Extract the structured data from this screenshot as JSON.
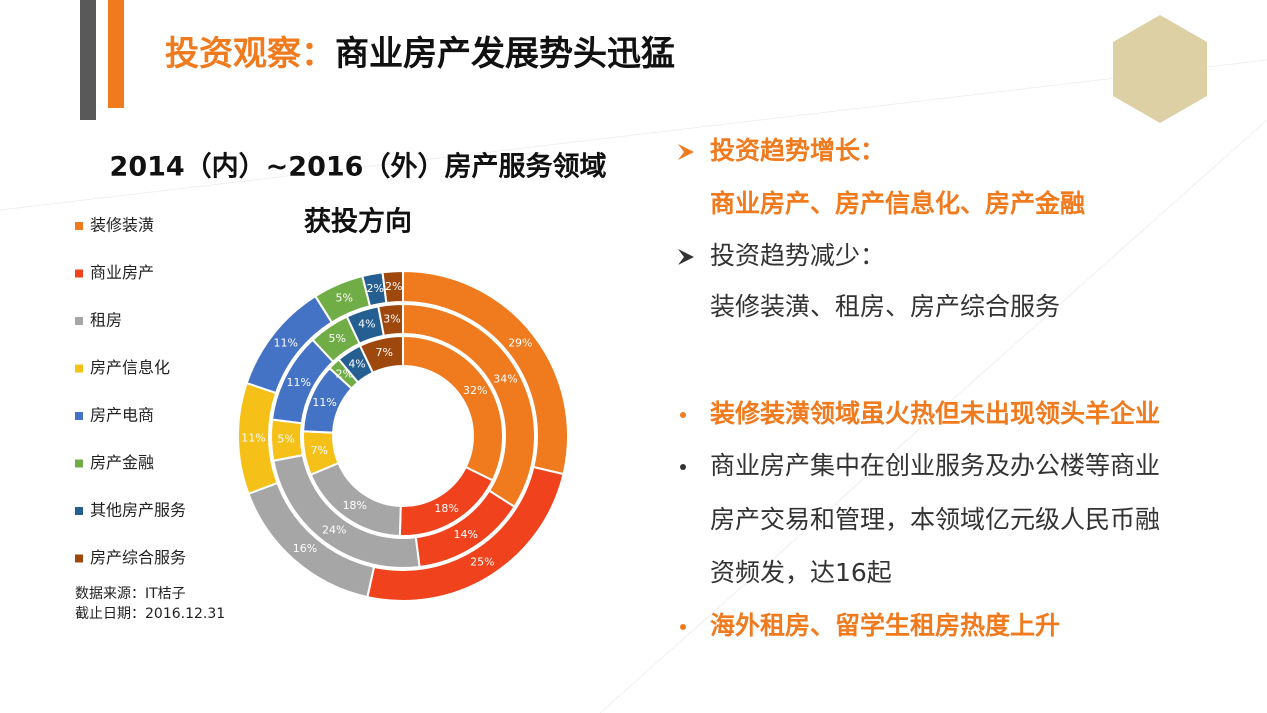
{
  "header": {
    "title_accent": "投资观察：",
    "title": "商业房产发展势头迅猛"
  },
  "chart_data": {
    "type": "donut",
    "title_lines": [
      "2014（内）~2016（外）房产服务领域",
      "获投方向"
    ],
    "categories": [
      "装修装潢",
      "商业房产",
      "租房",
      "房产信息化",
      "房产电商",
      "房产金融",
      "其他房产服务",
      "房产综合服务"
    ],
    "colors": [
      "#f07a1e",
      "#f0421c",
      "#a6a6a6",
      "#f5c018",
      "#4472c4",
      "#70ad47",
      "#255e91",
      "#9e480e"
    ],
    "series": [
      {
        "values": [
          32,
          18,
          18,
          7,
          11,
          2,
          4,
          7
        ],
        "value_labels": [
          "32%",
          "18%",
          "18%",
          "7%",
          "11%",
          "2%",
          "4%",
          "7%"
        ]
      },
      {
        "values": [
          34,
          14,
          24,
          5,
          11,
          5,
          4,
          3
        ],
        "value_labels": [
          "34%",
          "14%",
          "24%",
          "5%",
          "11%",
          "5%",
          "4%",
          "3%"
        ]
      },
      {
        "values": [
          29,
          25,
          16,
          11,
          11,
          5,
          2,
          2
        ],
        "value_labels": [
          "29%",
          "25%",
          "16%",
          "11%",
          "11%",
          "5%",
          "2%",
          "2%"
        ]
      }
    ],
    "source": "数据来源：IT桔子",
    "date": "截止日期：2016.12.31"
  },
  "points": [
    {
      "marker": "arrow",
      "accent": true,
      "lines": [
        "投资趋势增长：",
        "商业房产、房产信息化、房产金融"
      ]
    },
    {
      "marker": "arrow",
      "accent": false,
      "lines": [
        "投资趋势减少：",
        "装修装潢、租房、房产综合服务"
      ]
    },
    {
      "marker": "dot",
      "accent": true,
      "lines": [
        "装修装潢领域虽火热但未出现领头羊企业"
      ]
    },
    {
      "marker": "dot",
      "accent": false,
      "lines": [
        "商业房产集中在创业服务及办公楼等商业",
        "房产交易和管理，本领域亿元级人民币融",
        "资频发，达16起"
      ]
    },
    {
      "marker": "dot",
      "accent": true,
      "lines": [
        "海外租房、留学生租房热度上升"
      ]
    }
  ]
}
